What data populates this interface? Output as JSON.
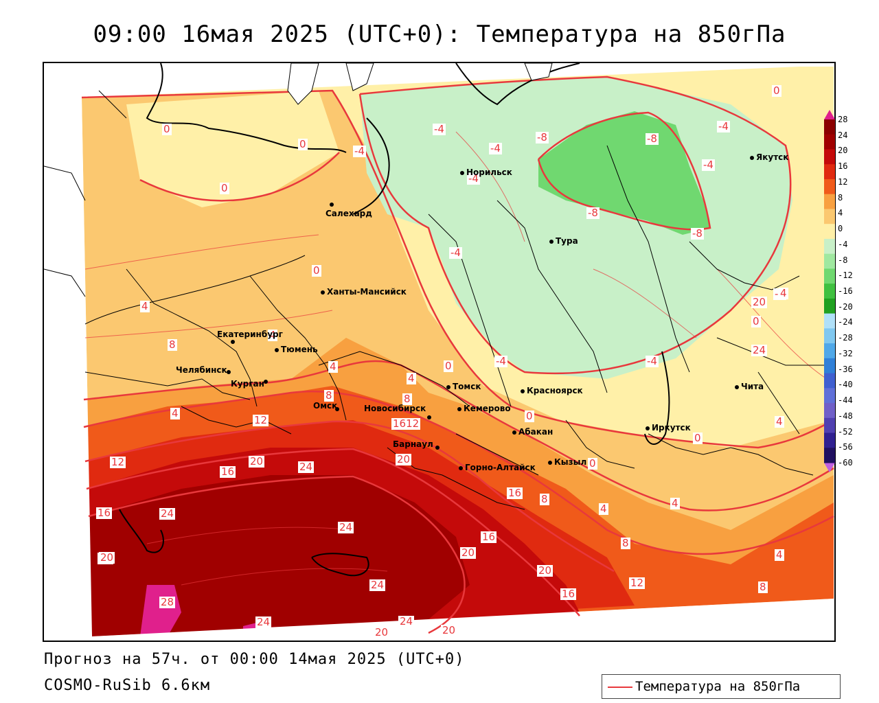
{
  "title": "09:00 16мая 2025 (UTC+0): Температура на 850гПа",
  "footer": {
    "forecast": "Прогноз на 57ч. от 00:00 14мая 2025 (UTC+0)",
    "model": "COSMO-RuSib 6.6км",
    "legend_label": "Температура на 850гПа"
  },
  "colors": {
    "contour": "#e8383c",
    "c28": "#e0208c",
    "c24": "#a00000",
    "c20": "#c40a0a",
    "c16": "#e02a10",
    "c12": "#f05a1a",
    "c8": "#f8a040",
    "c4": "#fbc870",
    "c0": "#fff0a8",
    "cm4": "#c8f0c8",
    "cm8": "#70d870",
    "land_white": "#ffffff"
  },
  "colorbar": {
    "ticks": [
      "28",
      "24",
      "20",
      "16",
      "12",
      "8",
      "4",
      "0",
      "-4",
      "-8",
      "-12",
      "-16",
      "-20",
      "-24",
      "-28",
      "-32",
      "-36",
      "-40",
      "-44",
      "-48",
      "-52",
      "-56",
      "-60"
    ],
    "colors": [
      "#8b0000",
      "#a00000",
      "#c40a0a",
      "#e02a10",
      "#f05a1a",
      "#f8a040",
      "#fbc870",
      "#fff0a8",
      "#c8f0c8",
      "#a0e8a0",
      "#70d870",
      "#40c040",
      "#20a020",
      "#b0e0f8",
      "#80c8f0",
      "#50a8e8",
      "#3080d8",
      "#4060d0",
      "#6070d8",
      "#7060c8",
      "#5040b0",
      "#302090",
      "#201060"
    ]
  },
  "cities": [
    {
      "name": "Якутск"
    },
    {
      "name": "Норильск"
    },
    {
      "name": "Салехард"
    },
    {
      "name": "Тура"
    },
    {
      "name": "Ханты-Мансийск"
    },
    {
      "name": "Екатеринбург"
    },
    {
      "name": "Тюмень"
    },
    {
      "name": "Челябинск"
    },
    {
      "name": "Курган"
    },
    {
      "name": "Омск"
    },
    {
      "name": "Новосибирск"
    },
    {
      "name": "Томск"
    },
    {
      "name": "Красноярск"
    },
    {
      "name": "Кемерово"
    },
    {
      "name": "Абакан"
    },
    {
      "name": "Барнаул"
    },
    {
      "name": "Горно-Алтайск"
    },
    {
      "name": "Кызыл"
    },
    {
      "name": "Иркутск"
    },
    {
      "name": "Чита"
    }
  ],
  "contour_labels": [
    "0",
    "0",
    "0",
    "0",
    "0",
    "0",
    "0",
    "0",
    "0",
    "0",
    "-4",
    "-4",
    "-4",
    "-4",
    "-4",
    "-4",
    "-4",
    "-4",
    "-4",
    "-4",
    "-8",
    "-8",
    "-8",
    "-8",
    "4",
    "4",
    "4",
    "4",
    "4",
    "4",
    "4",
    "4",
    "4",
    "4",
    "8",
    "8",
    "8",
    "8",
    "8",
    "8",
    "12",
    "12",
    "12",
    "12",
    "16",
    "16",
    "16",
    "16",
    "16",
    "16",
    "20",
    "20",
    "20",
    "20",
    "20",
    "20",
    "20",
    "20",
    "24",
    "24",
    "24",
    "24",
    "24",
    "24",
    "24",
    "28",
    "1612"
  ]
}
